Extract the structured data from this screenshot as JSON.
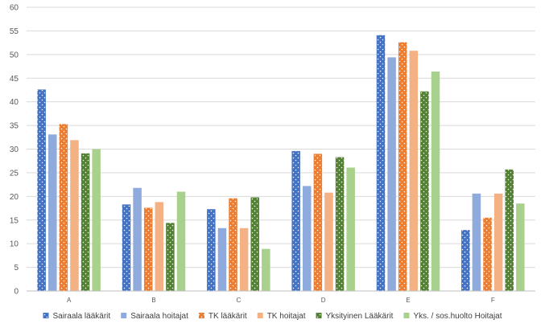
{
  "chart_data": {
    "type": "bar",
    "title": "",
    "xlabel": "",
    "ylabel": "",
    "ylim": [
      0,
      60
    ],
    "yticks": [
      0,
      5,
      10,
      15,
      20,
      25,
      30,
      35,
      40,
      45,
      50,
      55,
      60
    ],
    "grid": "horizontal",
    "legend_position": "bottom",
    "categories": [
      "A",
      "B",
      "C",
      "D",
      "E",
      "F"
    ],
    "series": [
      {
        "name": "Sairaala lääkärit",
        "color": "#4472C4",
        "pattern": "dotted",
        "values": [
          42.6,
          18.3,
          17.3,
          29.6,
          54.1,
          12.9
        ]
      },
      {
        "name": "Sairaala hoitajat",
        "color": "#8FAADC",
        "pattern": "solid",
        "values": [
          33.1,
          21.8,
          13.3,
          22.2,
          49.4,
          20.6
        ]
      },
      {
        "name": "TK lääkärit",
        "color": "#ED7D31",
        "pattern": "dotted",
        "values": [
          35.3,
          17.6,
          19.6,
          29.0,
          52.6,
          15.5
        ]
      },
      {
        "name": "TK hoitajat",
        "color": "#F4B183",
        "pattern": "solid",
        "values": [
          31.9,
          18.8,
          13.3,
          20.8,
          50.8,
          20.6
        ]
      },
      {
        "name": "Yksityinen Lääkärit",
        "color": "#548235",
        "pattern": "dotted",
        "values": [
          29.1,
          14.4,
          19.8,
          28.3,
          42.2,
          25.7
        ]
      },
      {
        "name": "Yks. / sos.huolto Hoitajat",
        "color": "#A9D18E",
        "pattern": "solid",
        "values": [
          30.0,
          21.0,
          8.9,
          26.1,
          46.4,
          18.5
        ]
      }
    ]
  }
}
